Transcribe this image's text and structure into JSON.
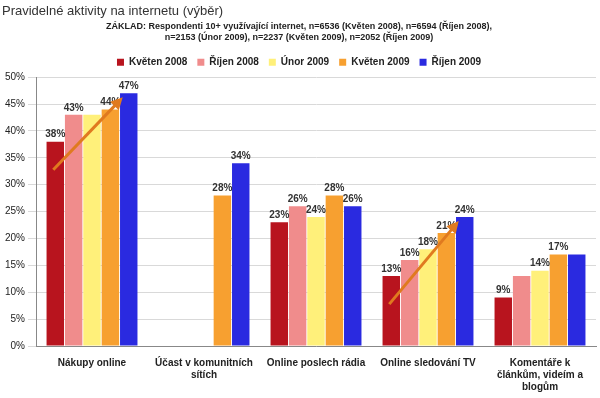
{
  "chart_data": {
    "type": "bar",
    "title": "Pravidelné aktivity na internetu (výběr)",
    "subtitle": [
      "ZÁKLAD: Respondenti 10+ využívající internet, n=6536 (Květen 2008), n=6594 (Říjen 2008),",
      "n=2153 (Únor 2009), n=2237 (Květen 2009), n=2052 (Říjen 2009)"
    ],
    "categories": [
      "Nákupy online",
      [
        "Účast v komunitních",
        "sítích"
      ],
      "Online poslech rádia",
      "Online sledování TV",
      [
        "Komentáře k",
        "článkům, videím a",
        "blogům"
      ]
    ],
    "series": [
      {
        "name": "Květen 2008",
        "color": "#b8141e",
        "values": [
          38,
          null,
          23,
          13,
          9
        ],
        "value_labels": [
          "38%",
          null,
          "23%",
          "13%",
          "9%"
        ]
      },
      {
        "name": "Říjen 2008",
        "color": "#f08c8c",
        "values": [
          43,
          null,
          26,
          16,
          13
        ],
        "value_labels": [
          "43%",
          null,
          "26%",
          "16%",
          null
        ]
      },
      {
        "name": "Únor 2009",
        "color": "#fff07a",
        "values": [
          43,
          null,
          24,
          18,
          14
        ],
        "value_labels": [
          null,
          null,
          "24%",
          "18%",
          "14%"
        ]
      },
      {
        "name": "Květen 2009",
        "color": "#f7a030",
        "values": [
          44,
          28,
          28,
          21,
          17
        ],
        "value_labels": [
          "44%",
          "28%",
          "28%",
          "21%",
          "17%"
        ]
      },
      {
        "name": "Říjen 2009",
        "color": "#2a2ae0",
        "values": [
          47,
          34,
          26,
          24,
          17
        ],
        "value_labels": [
          "47%",
          "34%",
          "26%",
          "24%",
          null
        ]
      }
    ],
    "ylim": [
      0,
      50
    ],
    "yticks": [
      {
        "value": 0,
        "label": "0%"
      },
      {
        "value": 5,
        "label": "5%"
      },
      {
        "value": 10,
        "label": "10%"
      },
      {
        "value": 15,
        "label": "15%"
      },
      {
        "value": 20,
        "label": "20%"
      },
      {
        "value": 25,
        "label": "25%"
      },
      {
        "value": 30,
        "label": "30%"
      },
      {
        "value": 35,
        "label": "35%"
      },
      {
        "value": 40,
        "label": "40%"
      },
      {
        "value": 45,
        "label": "45%"
      },
      {
        "value": 50,
        "label": "50%"
      }
    ],
    "grid": true,
    "legend": "top",
    "data_labels": true
  }
}
